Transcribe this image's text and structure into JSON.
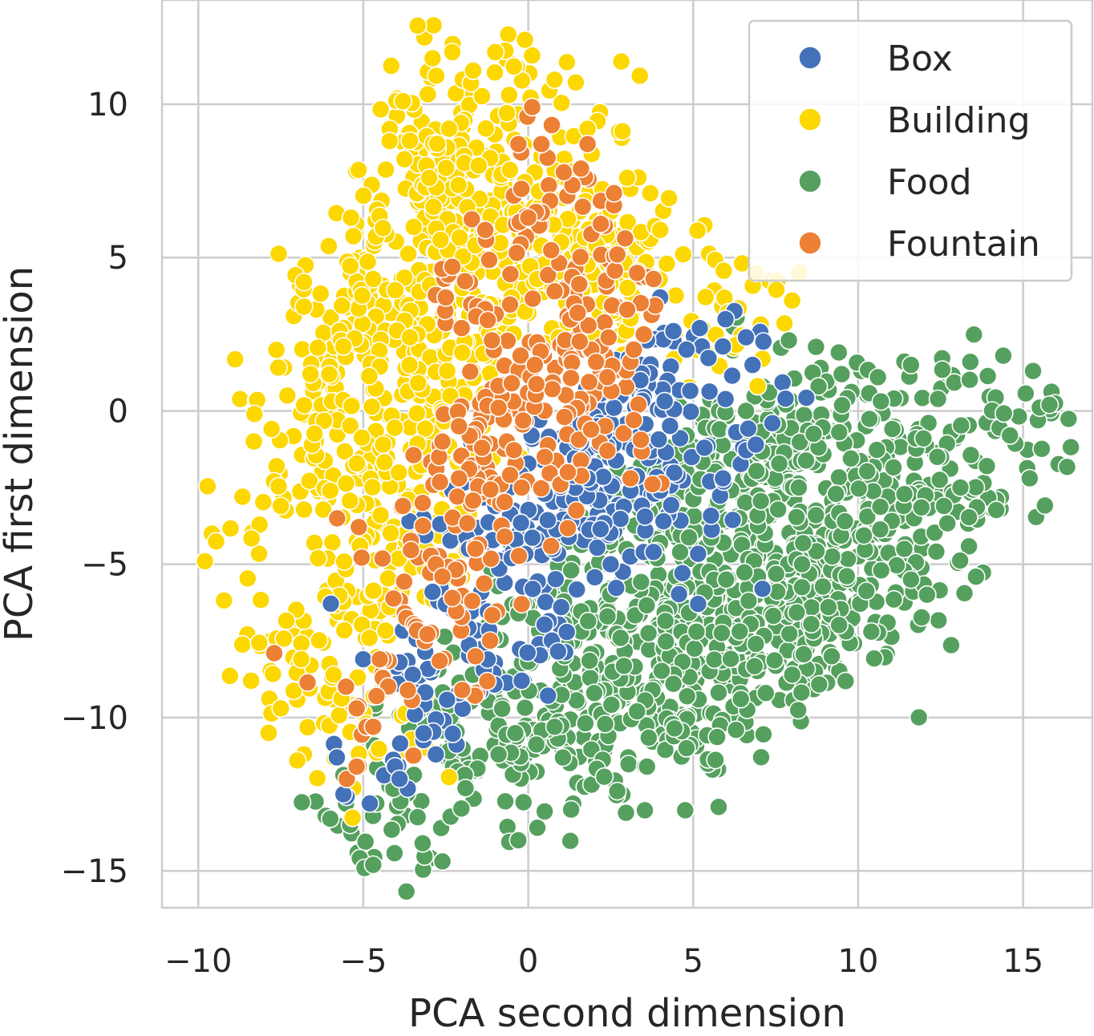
{
  "chart_data": {
    "type": "scatter",
    "title": "",
    "xlabel": "PCA second dimension",
    "ylabel": "PCA first dimension",
    "xlim": [
      -11.1,
      17.1
    ],
    "ylim": [
      -16.2,
      13.4
    ],
    "xticks": [
      -10,
      -5,
      0,
      5,
      10,
      15
    ],
    "yticks": [
      -15,
      -10,
      -5,
      0,
      5,
      10
    ],
    "xtick_labels": [
      "−10",
      "−5",
      "0",
      "5",
      "10",
      "15"
    ],
    "ytick_labels": [
      "−15",
      "−10",
      "−5",
      "0",
      "5",
      "10"
    ],
    "grid": true,
    "legend_position": "top-right",
    "series": [
      {
        "name": "Box",
        "color": "#4472b8",
        "approx_point_count": 320,
        "centroid": [
          1.0,
          -3.5
        ],
        "spread": [
          2.6,
          3.8
        ],
        "sample_points": [
          [
            -5.6,
            -12.5
          ],
          [
            -5.8,
            -11.3
          ],
          [
            -4.8,
            -12.8
          ],
          [
            -3.9,
            -12.0
          ],
          [
            -2.8,
            -11.2
          ],
          [
            -5.0,
            -8.1
          ],
          [
            -3.9,
            -8.2
          ],
          [
            -3.5,
            -8.6
          ],
          [
            -2.9,
            -5.9
          ],
          [
            -3.6,
            -3.6
          ],
          [
            -2.3,
            -2.6
          ],
          [
            -1.0,
            -3.1
          ],
          [
            0.5,
            -2.7
          ],
          [
            1.8,
            -2.2
          ],
          [
            3.1,
            -2.6
          ],
          [
            4.0,
            -2.6
          ],
          [
            4.1,
            -3.6
          ],
          [
            3.5,
            -4.6
          ],
          [
            2.5,
            -5.0
          ],
          [
            1.0,
            -6.4
          ],
          [
            -0.2,
            -8.8
          ],
          [
            1.5,
            -1.0
          ],
          [
            2.8,
            0.5
          ],
          [
            3.4,
            1.0
          ],
          [
            4.4,
            2.6
          ],
          [
            4.8,
            2.0
          ],
          [
            5.2,
            2.7
          ],
          [
            5.9,
            2.1
          ],
          [
            6.6,
            2.4
          ],
          [
            6.8,
            1.5
          ],
          [
            7.8,
            0.4
          ],
          [
            7.4,
            -0.4
          ],
          [
            6.9,
            -1.1
          ],
          [
            5.9,
            -2.2
          ],
          [
            4.0,
            3.7
          ],
          [
            3.6,
            2.3
          ],
          [
            2.5,
            -0.4
          ],
          [
            -1.8,
            -4.5
          ],
          [
            -0.5,
            -4.8
          ],
          [
            -2.5,
            -6.3
          ],
          [
            7.1,
            -5.8
          ],
          [
            3.8,
            -4.6
          ],
          [
            2.6,
            0.1
          ],
          [
            1.3,
            -3.6
          ],
          [
            0.1,
            -0.8
          ]
        ]
      },
      {
        "name": "Building",
        "color": "#fcd700",
        "approx_point_count": 900,
        "centroid": [
          -2.5,
          2.5
        ],
        "spread": [
          3.6,
          5.8
        ],
        "sample_points": [
          [
            -9.8,
            -4.9
          ],
          [
            -8.3,
            -0.1
          ],
          [
            -7.3,
            0.5
          ],
          [
            -7.5,
            -3.1
          ],
          [
            -6.8,
            4.2
          ],
          [
            -6.8,
            3.4
          ],
          [
            -8.4,
            -8.8
          ],
          [
            -7.5,
            -9.7
          ],
          [
            -6.8,
            -11.2
          ],
          [
            -7.0,
            -11.4
          ],
          [
            -5.3,
            -12.3
          ],
          [
            -4.0,
            -11.3
          ],
          [
            -2.9,
            11.5
          ],
          [
            -2.3,
            11.7
          ],
          [
            -1.0,
            11.7
          ],
          [
            -0.1,
            12.1
          ],
          [
            0.8,
            10.8
          ],
          [
            1.8,
            9.2
          ],
          [
            -4.2,
            8.8
          ],
          [
            -3.8,
            10.1
          ],
          [
            -5.3,
            5.7
          ],
          [
            -4.7,
            4.3
          ],
          [
            -5.6,
            2.1
          ],
          [
            -6.6,
            1.2
          ],
          [
            -6.0,
            -2.6
          ],
          [
            -5.1,
            -4.4
          ],
          [
            -4.2,
            -6.4
          ],
          [
            -3.1,
            -4.5
          ],
          [
            -2.0,
            1.9
          ],
          [
            -0.5,
            3.7
          ],
          [
            1.0,
            5.5
          ],
          [
            2.5,
            6.5
          ],
          [
            3.0,
            7.6
          ],
          [
            3.7,
            7.1
          ],
          [
            4.0,
            5.9
          ],
          [
            4.2,
            4.8
          ],
          [
            6.9,
            4.5
          ],
          [
            8.0,
            3.6
          ],
          [
            7.1,
            1.7
          ],
          [
            -1.6,
            5.4
          ],
          [
            -3.0,
            7.6
          ],
          [
            -2.4,
            9.2
          ],
          [
            -1.5,
            8.0
          ],
          [
            0.4,
            8.3
          ],
          [
            -5.9,
            -8.6
          ],
          [
            -4.9,
            -10.2
          ],
          [
            -2.3,
            -3.8
          ],
          [
            -3.6,
            1.5
          ],
          [
            -4.4,
            -1.1
          ],
          [
            -1.1,
            3.0
          ]
        ]
      },
      {
        "name": "Food",
        "color": "#55a05e",
        "approx_point_count": 1200,
        "centroid": [
          5.0,
          -6.2
        ],
        "spread": [
          6.0,
          4.6
        ],
        "sample_points": [
          [
            -4.7,
            -14.8
          ],
          [
            -3.2,
            -14.1
          ],
          [
            -5.4,
            -13.5
          ],
          [
            -6.0,
            -13.3
          ],
          [
            -0.3,
            -14.0
          ],
          [
            1.3,
            -13.0
          ],
          [
            2.7,
            -12.4
          ],
          [
            3.6,
            -11.6
          ],
          [
            4.8,
            -11.0
          ],
          [
            6.3,
            -10.4
          ],
          [
            7.2,
            -9.2
          ],
          [
            8.0,
            -8.6
          ],
          [
            9.2,
            -8.0
          ],
          [
            10.4,
            -7.2
          ],
          [
            11.6,
            -5.5
          ],
          [
            12.6,
            -3.1
          ],
          [
            13.9,
            -1.8
          ],
          [
            15.2,
            -2.2
          ],
          [
            15.8,
            0.2
          ],
          [
            15.3,
            1.3
          ],
          [
            14.4,
            1.8
          ],
          [
            13.4,
            1.6
          ],
          [
            11.6,
            1.5
          ],
          [
            10.6,
            1.1
          ],
          [
            9.5,
            1.2
          ],
          [
            8.8,
            0.8
          ],
          [
            7.3,
            0.6
          ],
          [
            6.6,
            0.0
          ],
          [
            5.8,
            -0.6
          ],
          [
            4.8,
            -0.8
          ],
          [
            4.0,
            -1.8
          ],
          [
            3.3,
            -3.0
          ],
          [
            2.5,
            -3.9
          ],
          [
            1.3,
            -5.2
          ],
          [
            -0.3,
            -6.6
          ],
          [
            -1.5,
            -8.0
          ],
          [
            -2.4,
            -9.6
          ],
          [
            -3.6,
            -11.2
          ],
          [
            7.9,
            2.3
          ],
          [
            12.4,
            -1.5
          ],
          [
            10.7,
            -5.2
          ],
          [
            9.6,
            -3.6
          ],
          [
            8.2,
            -2.5
          ],
          [
            6.0,
            -5.5
          ],
          [
            5.1,
            -7.2
          ],
          [
            4.4,
            -8.9
          ],
          [
            3.3,
            -9.8
          ],
          [
            2.0,
            -9.2
          ],
          [
            0.8,
            -10.3
          ],
          [
            -0.9,
            -11.2
          ],
          [
            -1.9,
            -12.3
          ],
          [
            11.4,
            -4.5
          ],
          [
            13.1,
            -2.5
          ],
          [
            14.6,
            -0.8
          ],
          [
            6.9,
            -7.6
          ],
          [
            9.1,
            -6.4
          ],
          [
            8.3,
            -5.0
          ],
          [
            6.4,
            -3.5
          ],
          [
            4.6,
            -5.9
          ],
          [
            2.8,
            -7.4
          ],
          [
            1.1,
            -8.0
          ]
        ]
      },
      {
        "name": "Fountain",
        "color": "#ec8034",
        "approx_point_count": 290,
        "centroid": [
          0.6,
          1.8
        ],
        "spread": [
          2.4,
          4.6
        ],
        "sample_points": [
          [
            -7.7,
            -7.9
          ],
          [
            -5.5,
            -12.0
          ],
          [
            -5.2,
            -11.6
          ],
          [
            -5.2,
            -9.7
          ],
          [
            -4.9,
            -10.3
          ],
          [
            -4.7,
            -10.3
          ],
          [
            -4.6,
            -9.3
          ],
          [
            -4.5,
            -8.1
          ],
          [
            -3.8,
            -3.1
          ],
          [
            -3.2,
            -3.0
          ],
          [
            -2.8,
            -5.0
          ],
          [
            -2.6,
            -5.4
          ],
          [
            -2.3,
            -6.1
          ],
          [
            -1.7,
            -6.2
          ],
          [
            -1.6,
            -4.5
          ],
          [
            -2.1,
            -2.2
          ],
          [
            -1.4,
            -1.2
          ],
          [
            -2.1,
            -0.5
          ],
          [
            -2.7,
            -1.5
          ],
          [
            -2.0,
            -9.1
          ],
          [
            -1.6,
            -8.0
          ],
          [
            -0.2,
            -6.3
          ],
          [
            -0.2,
            -2.5
          ],
          [
            0.5,
            -1.5
          ],
          [
            1.2,
            -2.0
          ],
          [
            2.4,
            -1.3
          ],
          [
            3.1,
            -2.2
          ],
          [
            2.4,
            1.1
          ],
          [
            3.1,
            1.6
          ],
          [
            3.2,
            2.0
          ],
          [
            3.5,
            2.5
          ],
          [
            3.0,
            3.3
          ],
          [
            3.8,
            4.3
          ],
          [
            3.3,
            4.5
          ],
          [
            2.7,
            5.1
          ],
          [
            2.2,
            6.1
          ],
          [
            2.6,
            6.7
          ],
          [
            2.6,
            7.1
          ],
          [
            1.6,
            7.9
          ],
          [
            1.8,
            8.7
          ],
          [
            0.4,
            8.7
          ],
          [
            -0.3,
            8.7
          ],
          [
            0.0,
            6.3
          ],
          [
            -1.3,
            5.9
          ],
          [
            -2.3,
            4.7
          ],
          [
            -2.5,
            3.7
          ],
          [
            -1.1,
            2.3
          ],
          [
            -0.9,
            0.1
          ],
          [
            0.2,
            1.5
          ],
          [
            0.8,
            3.9
          ],
          [
            1.5,
            3.2
          ],
          [
            1.1,
            -0.2
          ],
          [
            3.2,
            -0.3
          ],
          [
            -0.5,
            0.9
          ],
          [
            -2.6,
            -1.0
          ]
        ]
      }
    ]
  }
}
